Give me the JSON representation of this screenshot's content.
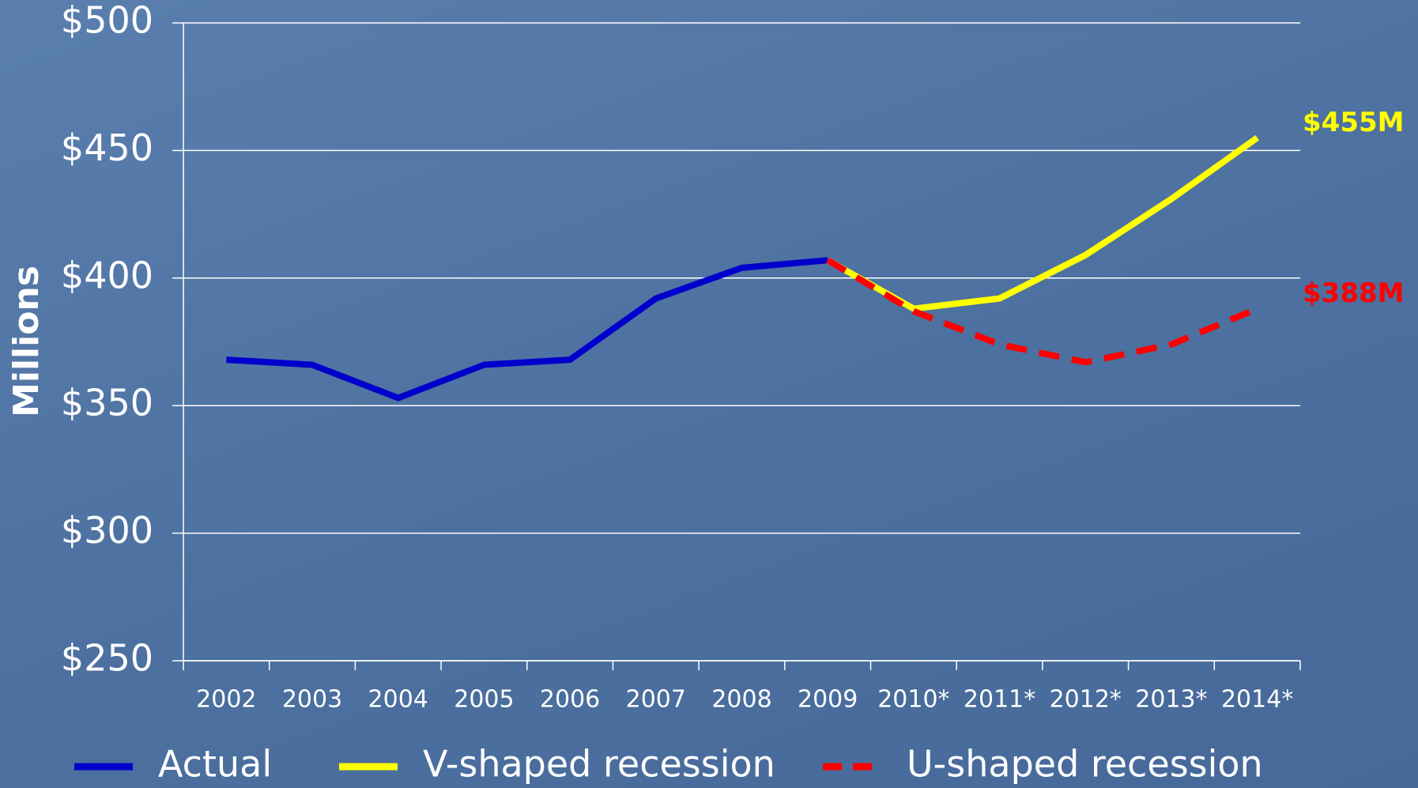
{
  "chart_data": {
    "type": "line",
    "y_label": "Millions",
    "categories": [
      "2002",
      "2003",
      "2004",
      "2005",
      "2006",
      "2007",
      "2008",
      "2009",
      "2010*",
      "2011*",
      "2012*",
      "2013*",
      "2014*"
    ],
    "series": [
      {
        "name": "Actual",
        "color": "#0000cc",
        "style": "solid",
        "values": [
          368,
          366,
          353,
          366,
          368,
          392,
          404,
          407,
          null,
          null,
          null,
          null,
          null
        ]
      },
      {
        "name": "V-shaped recession",
        "color": "#ffff00",
        "style": "solid",
        "values": [
          null,
          null,
          null,
          null,
          null,
          null,
          null,
          407,
          388,
          392,
          409,
          431,
          455
        ],
        "value_labels": [
          null,
          null,
          null,
          null,
          null,
          null,
          null,
          null,
          null,
          null,
          null,
          null,
          "$455M"
        ]
      },
      {
        "name": "U-shaped recession",
        "color": "#ff0000",
        "style": "dashed",
        "values": [
          null,
          null,
          null,
          null,
          null,
          null,
          null,
          407,
          387,
          374,
          367,
          374,
          388
        ],
        "value_labels": [
          null,
          null,
          null,
          null,
          null,
          null,
          null,
          null,
          null,
          null,
          null,
          null,
          "$388M"
        ]
      }
    ],
    "ylim": [
      250,
      500
    ],
    "yticks": [
      {
        "value": 250,
        "label": "$250"
      },
      {
        "value": 300,
        "label": "$300"
      },
      {
        "value": 350,
        "label": "$350"
      },
      {
        "value": 400,
        "label": "$400"
      },
      {
        "value": 450,
        "label": "$450"
      },
      {
        "value": 500,
        "label": "$500"
      }
    ],
    "grid": true,
    "legend": "bottom"
  }
}
